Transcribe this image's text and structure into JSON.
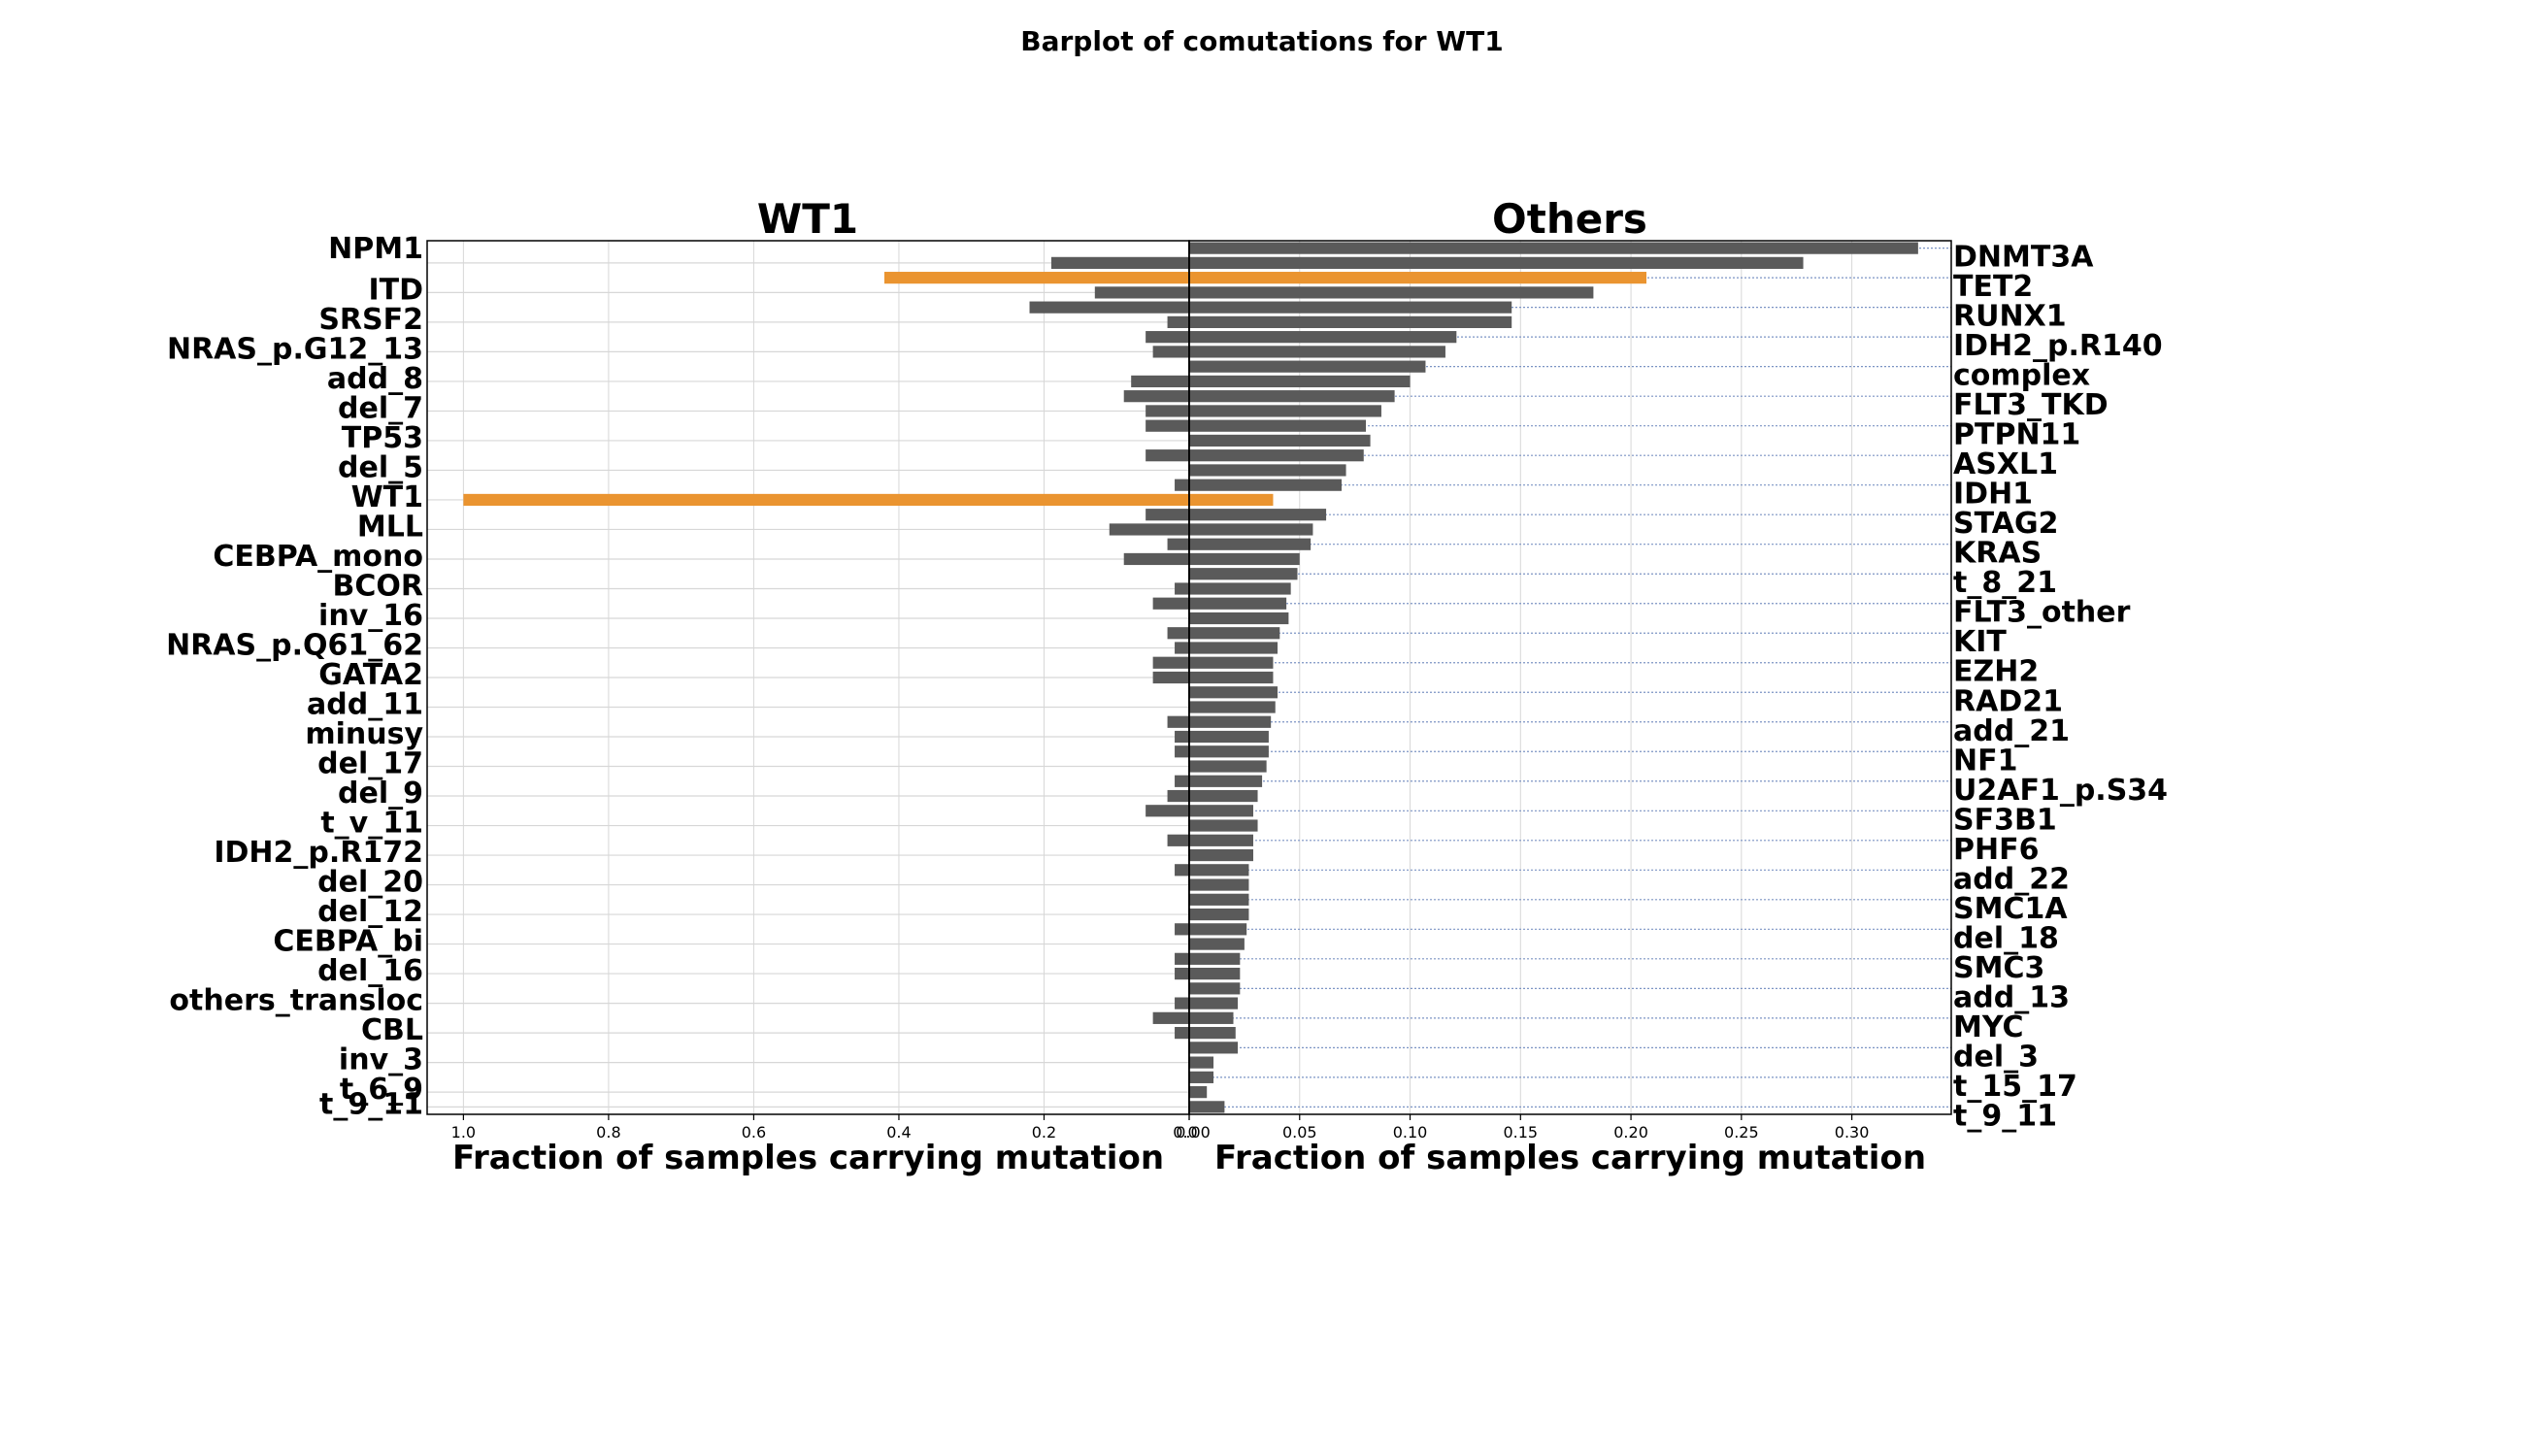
{
  "figure": {
    "title": "Barplot  of comutations for WT1"
  },
  "colors": {
    "bar": "#5a5a5a",
    "highlight": "#ea9430",
    "grid": "#d7d7d7",
    "dotted_line": "#7c94c4",
    "axis": "#000000"
  },
  "chart_data": [
    {
      "type": "bar",
      "orientation": "horizontal",
      "title": "WT1",
      "xlabel": "Fraction of samples carrying mutation",
      "xlim": [
        1.05,
        0
      ],
      "x_inverted": true,
      "xticks": [
        "1.0",
        "0.8",
        "0.6",
        "0.4",
        "0.2",
        "0.0"
      ],
      "grid": true,
      "highlight_color": "#ea9430",
      "rows": [
        {
          "category": "DNMT3A",
          "value": 0.0
        },
        {
          "category": "NPM1",
          "value": 0.19
        },
        {
          "category": "TET2",
          "value": 0.42,
          "highlight": true
        },
        {
          "category": "ITD",
          "value": 0.13
        },
        {
          "category": "RUNX1",
          "value": 0.22
        },
        {
          "category": "SRSF2",
          "value": 0.03
        },
        {
          "category": "IDH2_p.R140",
          "value": 0.06
        },
        {
          "category": "NRAS_p.G12_13",
          "value": 0.05
        },
        {
          "category": "complex",
          "value": 0.0
        },
        {
          "category": "add_8",
          "value": 0.08
        },
        {
          "category": "FLT3_TKD",
          "value": 0.09
        },
        {
          "category": "del_7",
          "value": 0.06
        },
        {
          "category": "PTPN11",
          "value": 0.06
        },
        {
          "category": "TP53",
          "value": 0.0
        },
        {
          "category": "ASXL1",
          "value": 0.06
        },
        {
          "category": "del_5",
          "value": 0.0
        },
        {
          "category": "IDH1",
          "value": 0.02
        },
        {
          "category": "WT1",
          "value": 1.0,
          "highlight": true
        },
        {
          "category": "STAG2",
          "value": 0.06
        },
        {
          "category": "MLL",
          "value": 0.11
        },
        {
          "category": "KRAS",
          "value": 0.03
        },
        {
          "category": "CEBPA_mono",
          "value": 0.09
        },
        {
          "category": "t_8_21",
          "value": 0.0
        },
        {
          "category": "BCOR",
          "value": 0.02
        },
        {
          "category": "FLT3_other",
          "value": 0.05
        },
        {
          "category": "inv_16",
          "value": 0.0
        },
        {
          "category": "KIT",
          "value": 0.03
        },
        {
          "category": "NRAS_p.Q61_62",
          "value": 0.02
        },
        {
          "category": "EZH2",
          "value": 0.05
        },
        {
          "category": "GATA2",
          "value": 0.05
        },
        {
          "category": "RAD21",
          "value": 0.0
        },
        {
          "category": "add_11",
          "value": 0.0
        },
        {
          "category": "add_21",
          "value": 0.03
        },
        {
          "category": "minusy",
          "value": 0.02
        },
        {
          "category": "NF1",
          "value": 0.02
        },
        {
          "category": "del_17",
          "value": 0.0
        },
        {
          "category": "U2AF1_p.S34",
          "value": 0.02
        },
        {
          "category": "del_9",
          "value": 0.03
        },
        {
          "category": "SF3B1",
          "value": 0.06
        },
        {
          "category": "t_v_11",
          "value": 0.0
        },
        {
          "category": "PHF6",
          "value": 0.03
        },
        {
          "category": "IDH2_p.R172",
          "value": 0.0
        },
        {
          "category": "add_22",
          "value": 0.02
        },
        {
          "category": "del_20",
          "value": 0.0
        },
        {
          "category": "SMC1A",
          "value": 0.0
        },
        {
          "category": "del_12",
          "value": 0.0
        },
        {
          "category": "del_18",
          "value": 0.02
        },
        {
          "category": "CEBPA_bi",
          "value": 0.0
        },
        {
          "category": "SMC3",
          "value": 0.02
        },
        {
          "category": "del_16",
          "value": 0.02
        },
        {
          "category": "add_13",
          "value": 0.0
        },
        {
          "category": "others_transloc",
          "value": 0.02
        },
        {
          "category": "MYC",
          "value": 0.05
        },
        {
          "category": "CBL",
          "value": 0.02
        },
        {
          "category": "del_3",
          "value": 0.0
        },
        {
          "category": "inv_3",
          "value": 0.0
        },
        {
          "category": "t_15_17",
          "value": 0.0
        },
        {
          "category": "t_6_9",
          "value": 0.0
        },
        {
          "category": "t_9_11",
          "value": 0.0
        }
      ]
    },
    {
      "type": "bar",
      "orientation": "horizontal",
      "title": "Others",
      "xlabel": "Fraction of samples carrying mutation",
      "xlim": [
        0,
        0.345
      ],
      "xticks": [
        "0.00",
        "0.05",
        "0.10",
        "0.15",
        "0.20",
        "0.25",
        "0.30"
      ],
      "grid": true,
      "highlight_color": "#ea9430",
      "rows": [
        {
          "category": "DNMT3A",
          "value": 0.33
        },
        {
          "category": "NPM1",
          "value": 0.278
        },
        {
          "category": "TET2",
          "value": 0.207,
          "highlight": true
        },
        {
          "category": "ITD",
          "value": 0.183
        },
        {
          "category": "RUNX1",
          "value": 0.146
        },
        {
          "category": "SRSF2",
          "value": 0.146
        },
        {
          "category": "IDH2_p.R140",
          "value": 0.121
        },
        {
          "category": "NRAS_p.G12_13",
          "value": 0.116
        },
        {
          "category": "complex",
          "value": 0.107
        },
        {
          "category": "add_8",
          "value": 0.1
        },
        {
          "category": "FLT3_TKD",
          "value": 0.093
        },
        {
          "category": "del_7",
          "value": 0.087
        },
        {
          "category": "PTPN11",
          "value": 0.08
        },
        {
          "category": "TP53",
          "value": 0.082
        },
        {
          "category": "ASXL1",
          "value": 0.079
        },
        {
          "category": "del_5",
          "value": 0.071
        },
        {
          "category": "IDH1",
          "value": 0.069
        },
        {
          "category": "WT1",
          "value": 0.038,
          "highlight": true
        },
        {
          "category": "STAG2",
          "value": 0.062
        },
        {
          "category": "MLL",
          "value": 0.056
        },
        {
          "category": "KRAS",
          "value": 0.055
        },
        {
          "category": "CEBPA_mono",
          "value": 0.05
        },
        {
          "category": "t_8_21",
          "value": 0.049
        },
        {
          "category": "BCOR",
          "value": 0.046
        },
        {
          "category": "FLT3_other",
          "value": 0.044
        },
        {
          "category": "inv_16",
          "value": 0.045
        },
        {
          "category": "KIT",
          "value": 0.041
        },
        {
          "category": "NRAS_p.Q61_62",
          "value": 0.04
        },
        {
          "category": "EZH2",
          "value": 0.038
        },
        {
          "category": "GATA2",
          "value": 0.038
        },
        {
          "category": "RAD21",
          "value": 0.04
        },
        {
          "category": "add_11",
          "value": 0.039
        },
        {
          "category": "add_21",
          "value": 0.037
        },
        {
          "category": "minusy",
          "value": 0.036
        },
        {
          "category": "NF1",
          "value": 0.036
        },
        {
          "category": "del_17",
          "value": 0.035
        },
        {
          "category": "U2AF1_p.S34",
          "value": 0.033
        },
        {
          "category": "del_9",
          "value": 0.031
        },
        {
          "category": "SF3B1",
          "value": 0.029
        },
        {
          "category": "t_v_11",
          "value": 0.031
        },
        {
          "category": "PHF6",
          "value": 0.029
        },
        {
          "category": "IDH2_p.R172",
          "value": 0.029
        },
        {
          "category": "add_22",
          "value": 0.027
        },
        {
          "category": "del_20",
          "value": 0.027
        },
        {
          "category": "SMC1A",
          "value": 0.027
        },
        {
          "category": "del_12",
          "value": 0.027
        },
        {
          "category": "del_18",
          "value": 0.026
        },
        {
          "category": "CEBPA_bi",
          "value": 0.025
        },
        {
          "category": "SMC3",
          "value": 0.023
        },
        {
          "category": "del_16",
          "value": 0.023
        },
        {
          "category": "add_13",
          "value": 0.023
        },
        {
          "category": "others_transloc",
          "value": 0.022
        },
        {
          "category": "MYC",
          "value": 0.02
        },
        {
          "category": "CBL",
          "value": 0.021
        },
        {
          "category": "del_3",
          "value": 0.022
        },
        {
          "category": "inv_3",
          "value": 0.011
        },
        {
          "category": "t_15_17",
          "value": 0.011
        },
        {
          "category": "t_6_9",
          "value": 0.008
        },
        {
          "category": "t_9_11",
          "value": 0.016
        }
      ]
    }
  ]
}
